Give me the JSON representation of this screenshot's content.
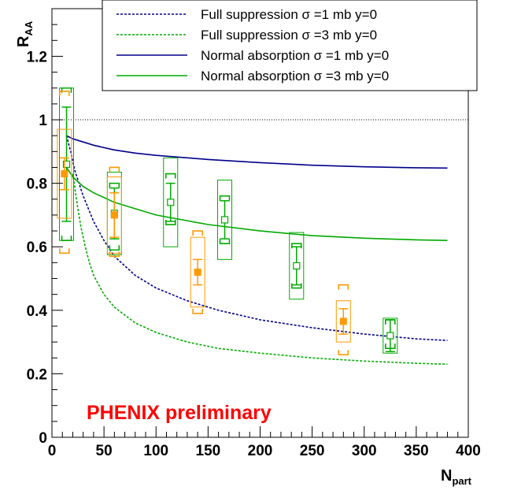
{
  "chart_data": {
    "type": "scatter",
    "xlabel_main": "N",
    "xlabel_sub": "part",
    "ylabel_main": "R",
    "ylabel_sub": "AA",
    "xlim": [
      0,
      400
    ],
    "ylim": [
      0,
      1.35
    ],
    "x_ticks": [
      "0",
      "50",
      "100",
      "150",
      "200",
      "250",
      "300",
      "350",
      "400"
    ],
    "y_ticks": [
      "0",
      "0.2",
      "0.4",
      "0.6",
      "0.8",
      "1",
      "1.2"
    ],
    "reference_line_y": 1.0,
    "watermark": "PHENIX preliminary",
    "legend": [
      {
        "label": "Full suppression σ =1 mb y=0",
        "color": "#00008b",
        "dash": true
      },
      {
        "label": "Full suppression σ =3 mb y=0",
        "color": "#00aa00",
        "dash": true
      },
      {
        "label": "Normal absorption σ =1 mb y=0",
        "color": "#00008b",
        "dash": false
      },
      {
        "label": "Normal absorption σ =3 mb y=0",
        "color": "#00aa00",
        "dash": false
      }
    ],
    "curves": [
      {
        "color": "#00008b",
        "dash": true,
        "x": [
          14,
          18,
          22,
          26,
          30,
          35,
          40,
          50,
          60,
          80,
          100,
          130,
          160,
          200,
          250,
          300,
          350,
          380
        ],
        "y": [
          0.95,
          0.9,
          0.84,
          0.8,
          0.76,
          0.72,
          0.68,
          0.62,
          0.57,
          0.51,
          0.47,
          0.43,
          0.4,
          0.37,
          0.345,
          0.325,
          0.31,
          0.305
        ]
      },
      {
        "color": "#00aa00",
        "dash": true,
        "x": [
          20,
          24,
          28,
          32,
          36,
          40,
          50,
          60,
          80,
          100,
          130,
          160,
          200,
          250,
          300,
          350,
          380
        ],
        "y": [
          0.83,
          0.74,
          0.66,
          0.6,
          0.55,
          0.51,
          0.45,
          0.41,
          0.36,
          0.33,
          0.3,
          0.28,
          0.265,
          0.25,
          0.24,
          0.233,
          0.23
        ]
      },
      {
        "color": "#00008b",
        "dash": false,
        "x": [
          14,
          20,
          30,
          40,
          60,
          80,
          100,
          150,
          200,
          250,
          300,
          350,
          380
        ],
        "y": [
          0.95,
          0.94,
          0.93,
          0.92,
          0.905,
          0.895,
          0.888,
          0.875,
          0.865,
          0.857,
          0.852,
          0.849,
          0.848
        ]
      },
      {
        "color": "#00aa00",
        "dash": false,
        "x": [
          14,
          20,
          30,
          40,
          60,
          80,
          100,
          150,
          200,
          250,
          300,
          350,
          380
        ],
        "y": [
          0.85,
          0.82,
          0.79,
          0.77,
          0.74,
          0.72,
          0.7,
          0.67,
          0.65,
          0.635,
          0.627,
          0.622,
          0.62
        ]
      }
    ],
    "series": [
      {
        "color": "#00aa00",
        "marker": "open-square",
        "points": [
          {
            "x": 14,
            "y": 0.86,
            "stat": 0.18,
            "sys": 0.24,
            "global": [
              0.62,
              1.1
            ]
          },
          {
            "x": 60,
            "y": 0.705,
            "stat": 0.08,
            "sys": 0.13,
            "global": [
              0.59,
              0.8
            ]
          },
          {
            "x": 114,
            "y": 0.74,
            "stat": 0.06,
            "sys": 0.14,
            "global": [
              0.67,
              0.83
            ]
          },
          {
            "x": 166,
            "y": 0.685,
            "stat": 0.06,
            "sys": 0.125,
            "global": [
              0.61,
              0.76
            ]
          },
          {
            "x": 235,
            "y": 0.54,
            "stat": 0.06,
            "sys": 0.105,
            "global": [
              0.47,
              0.61
            ]
          },
          {
            "x": 325,
            "y": 0.32,
            "stat": 0.05,
            "sys": 0.055,
            "global": [
              0.28,
              0.37
            ]
          }
        ]
      },
      {
        "color": "#ff9900",
        "marker": "filled-square",
        "points": [
          {
            "x": 12,
            "y": 0.83,
            "stat": 0.05,
            "sys": 0.14,
            "global": [
              0.58,
              1.09
            ]
          },
          {
            "x": 60,
            "y": 0.7,
            "stat": 0.07,
            "sys": 0.12,
            "global": [
              0.57,
              0.85
            ]
          },
          {
            "x": 140,
            "y": 0.52,
            "stat": 0.04,
            "sys": 0.11,
            "global": [
              0.39,
              0.65
            ]
          },
          {
            "x": 280,
            "y": 0.365,
            "stat": 0.04,
            "sys": 0.065,
            "global": [
              0.26,
              0.48
            ]
          }
        ]
      }
    ]
  }
}
